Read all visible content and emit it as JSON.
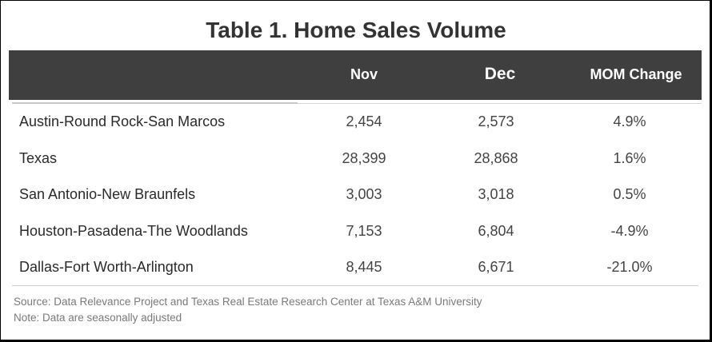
{
  "chart_data": {
    "type": "table",
    "title": "Table 1. Home Sales Volume",
    "columns": [
      "",
      "Nov",
      "Dec",
      "MOM Change"
    ],
    "rows": [
      {
        "name": "Austin-Round Rock-San Marcos",
        "nov": "2,454",
        "dec": "2,573",
        "mom": "4.9%"
      },
      {
        "name": "Texas",
        "nov": "28,399",
        "dec": "28,868",
        "mom": "1.6%"
      },
      {
        "name": "San Antonio-New Braunfels",
        "nov": "3,003",
        "dec": "3,018",
        "mom": "0.5%"
      },
      {
        "name": "Houston-Pasadena-The Woodlands",
        "nov": "7,153",
        "dec": "6,804",
        "mom": "-4.9%"
      },
      {
        "name": "Dallas-Fort Worth-Arlington",
        "nov": "8,445",
        "dec": "6,671",
        "mom": "-21.0%"
      }
    ],
    "source": "Source: Data Relevance Project and Texas Real Estate Research Center at Texas A&M University",
    "note": "Note: Data are seasonally adjusted",
    "colors": {
      "header_bg": "#3f3f3f",
      "header_text": "#ffffff"
    }
  }
}
